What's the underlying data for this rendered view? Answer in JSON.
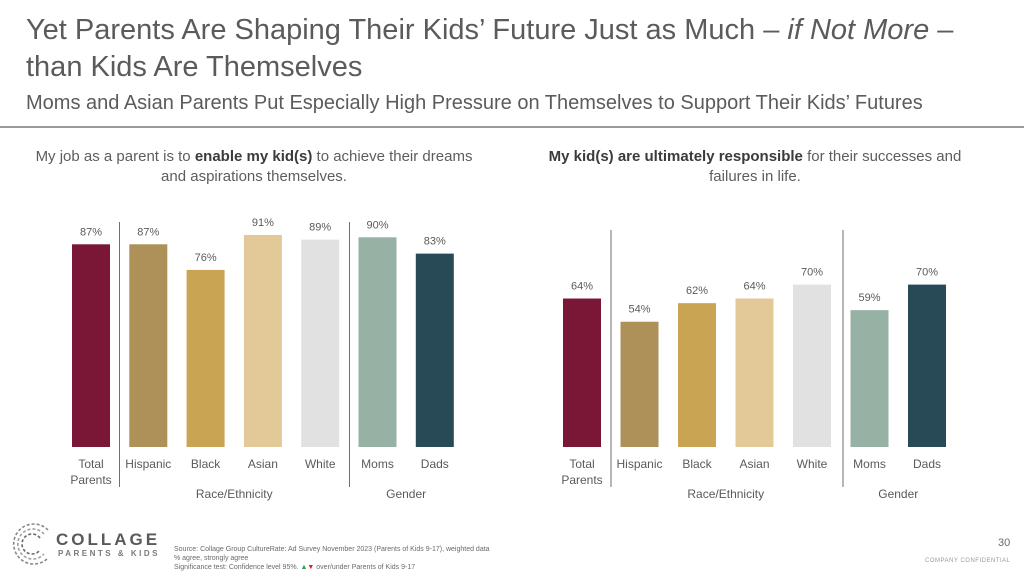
{
  "title": {
    "part1": "Yet Parents Are Shaping Their Kids’ Future Just as Much –",
    "emphasis": "if Not More",
    "part2": "–",
    "line2": "than Kids Are Themselves"
  },
  "subtitle": "Moms and Asian Parents Put Especially High Pressure on Themselves to Support Their Kids’ Futures",
  "left_heading": {
    "pre": "My job as a parent is to ",
    "bold": "enable my kid(s)",
    "post": " to achieve their dreams and aspirations themselves."
  },
  "right_heading": {
    "bold": "My kid(s) are ultimately responsible",
    "post": " for their successes and failures in life."
  },
  "colors": {
    "Total Parents": "#7b1736",
    "Hispanic": "#ae9159",
    "Black": "#c9a553",
    "Asian": "#e2c997",
    "White": "#e1e1e1",
    "Moms": "#97b1a5",
    "Dads": "#274a56"
  },
  "chart_data": [
    {
      "type": "bar",
      "categories": [
        "Total Parents",
        "Hispanic",
        "Black",
        "Asian",
        "White",
        "Moms",
        "Dads"
      ],
      "values": [
        87,
        87,
        76,
        91,
        89,
        90,
        83
      ],
      "value_labels": [
        "87%",
        "87%",
        "76%",
        "91%",
        "89%",
        "90%",
        "83%"
      ],
      "tick_labels": [
        [
          "Total",
          "Parents"
        ],
        [
          "Hispanic"
        ],
        [
          "Black"
        ],
        [
          "Asian"
        ],
        [
          "White"
        ],
        [
          "Moms"
        ],
        [
          "Dads"
        ]
      ],
      "groups": [
        {
          "label": "Race/Ethnicity",
          "members": [
            "Hispanic",
            "Black",
            "Asian",
            "White"
          ]
        },
        {
          "label": "Gender",
          "members": [
            "Moms",
            "Dads"
          ]
        }
      ],
      "ylim": [
        0,
        100
      ]
    },
    {
      "type": "bar",
      "categories": [
        "Total Parents",
        "Hispanic",
        "Black",
        "Asian",
        "White",
        "Moms",
        "Dads"
      ],
      "values": [
        64,
        54,
        62,
        64,
        70,
        59,
        70
      ],
      "value_labels": [
        "64%",
        "54%",
        "62%",
        "64%",
        "70%",
        "59%",
        "70%"
      ],
      "tick_labels": [
        [
          "Total",
          "Parents"
        ],
        [
          "Hispanic"
        ],
        [
          "Black"
        ],
        [
          "Asian"
        ],
        [
          "White"
        ],
        [
          "Moms"
        ],
        [
          "Dads"
        ]
      ],
      "groups": [
        {
          "label": "Race/Ethnicity",
          "members": [
            "Hispanic",
            "Black",
            "Asian",
            "White"
          ]
        },
        {
          "label": "Gender",
          "members": [
            "Moms",
            "Dads"
          ]
        }
      ],
      "ylim": [
        0,
        100
      ]
    }
  ],
  "logo": {
    "line1": "COLLAGE",
    "line2": "PARENTS & KIDS"
  },
  "footnote": {
    "line1": "Source: Collage Group CultureRate: Ad Survey November 2023 (Parents of Kids 9-17), weighted data",
    "line2": "% agree, strongly agree",
    "line3_pre": "Significance test: Confidence level 95%. ",
    "up": "▲",
    "down": "▼",
    "line3_post": " over/under Parents of Kids 9-17"
  },
  "page_number": "30",
  "confidential": "COMPANY CONFIDENTIAL"
}
